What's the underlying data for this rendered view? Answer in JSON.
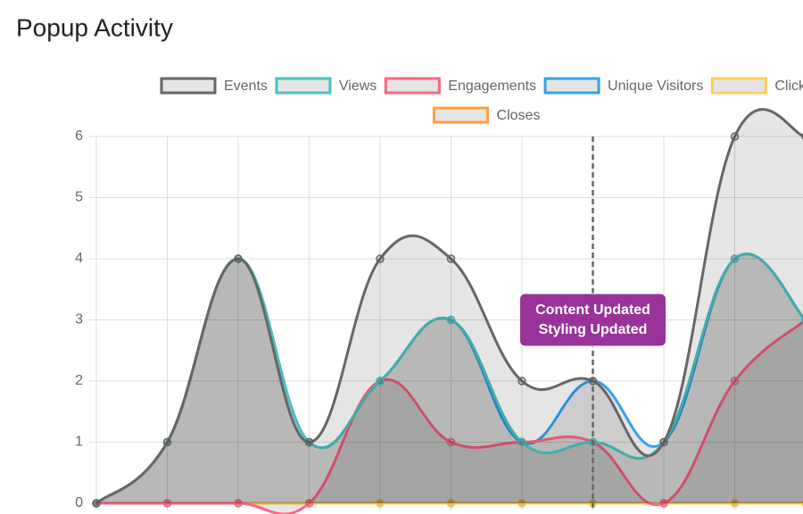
{
  "chart_data": {
    "type": "line",
    "title": "Popup Activity",
    "categories": [
      null,
      null,
      null,
      null,
      null,
      null,
      null,
      null,
      null,
      null,
      null
    ],
    "series": [
      {
        "name": "Events",
        "color": "#666666",
        "values": [
          0,
          1,
          4,
          1,
          4,
          4,
          2,
          2,
          1,
          6,
          6
        ]
      },
      {
        "name": "Views",
        "color": "#4bc0c0",
        "values": [
          0,
          1,
          4,
          1,
          2,
          3,
          1,
          1,
          1,
          4,
          3
        ]
      },
      {
        "name": "Engagements",
        "color": "#ff6384",
        "values": [
          0,
          0,
          0,
          0,
          2,
          1,
          1,
          1,
          0,
          2,
          3
        ]
      },
      {
        "name": "Unique Visitors",
        "color": "#36a2eb",
        "values": [
          0,
          1,
          4,
          1,
          2,
          3,
          1,
          2,
          1,
          4,
          3
        ]
      },
      {
        "name": "Clicks",
        "color": "#ffcd56",
        "values": [
          0,
          0,
          0,
          0,
          0,
          0,
          0,
          0,
          0,
          0,
          0
        ]
      },
      {
        "name": "Closes",
        "color": "#ff9f40",
        "values": [
          0,
          0,
          0,
          0,
          0,
          0,
          0,
          0,
          0,
          0,
          0
        ]
      }
    ],
    "ylim": [
      0,
      6
    ],
    "yticks": [
      0,
      1,
      2,
      3,
      4,
      5,
      6
    ],
    "grid": true,
    "annotations": [
      {
        "index": 7,
        "lines": [
          "Content Updated",
          "Styling Updated"
        ],
        "color": "#993399"
      }
    ]
  }
}
